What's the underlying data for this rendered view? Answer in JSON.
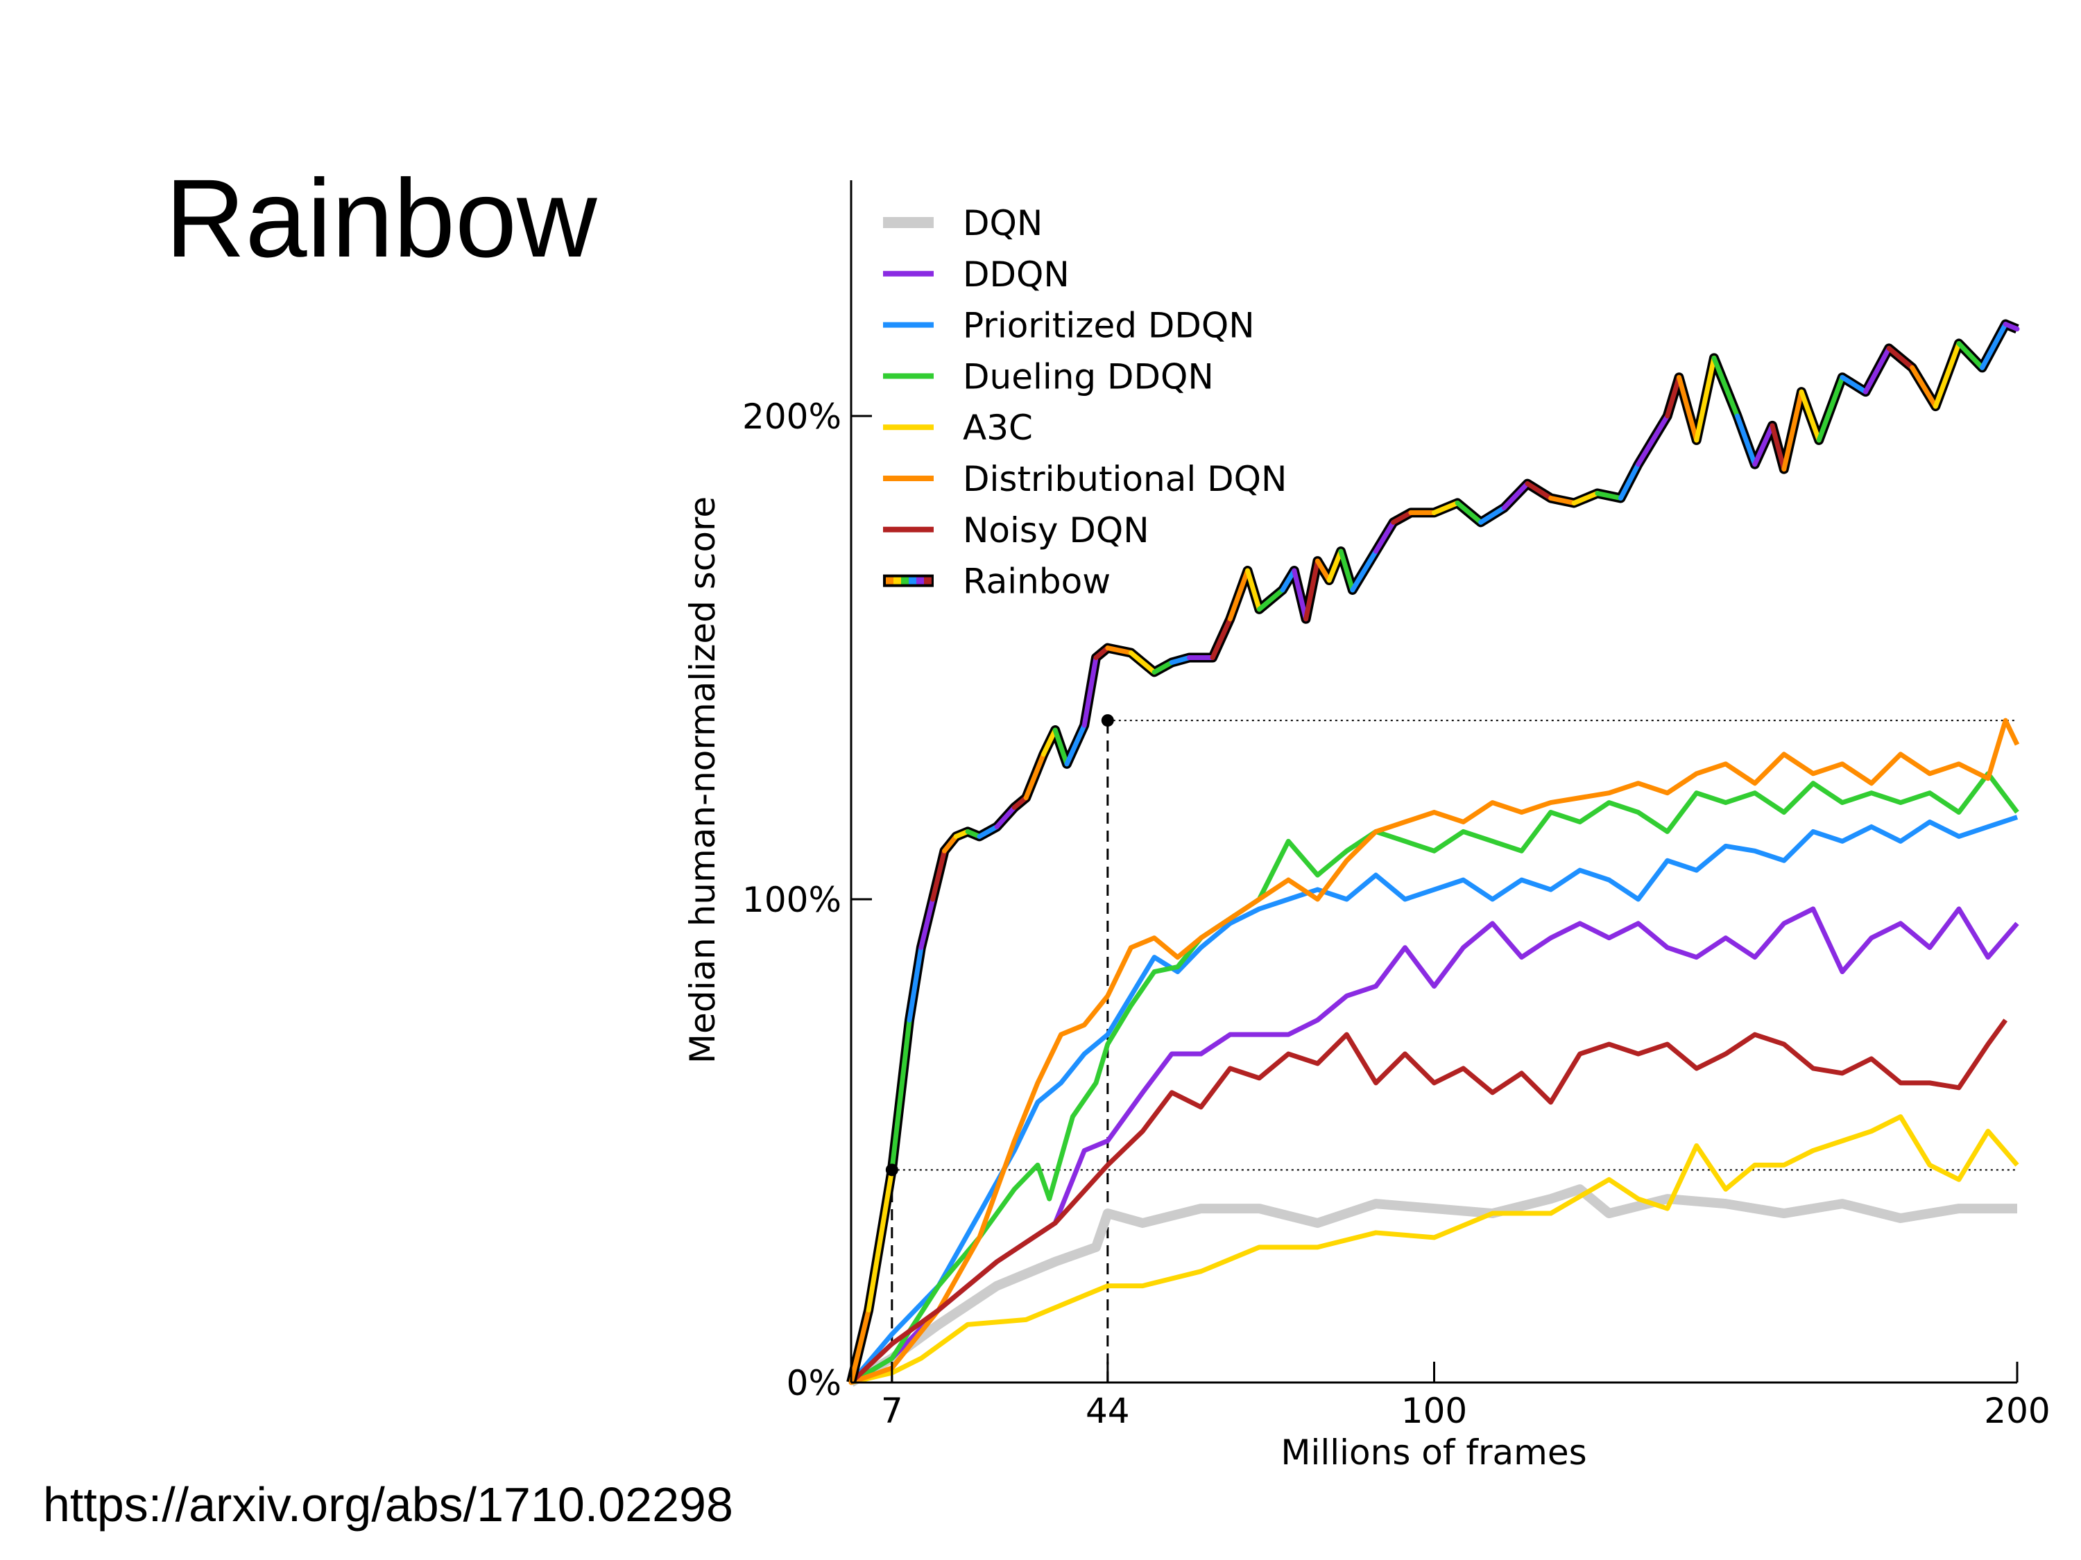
{
  "slide": {
    "title": "Rainbow",
    "source_url": "https://arxiv.org/abs/1710.02298"
  },
  "chart_data": {
    "type": "line",
    "title": "",
    "xlabel": "Millions of frames",
    "ylabel": "Median human-normalized score",
    "xlim": [
      0,
      200
    ],
    "ylim": [
      0,
      230
    ],
    "x_ticks": [
      7,
      44,
      100,
      200
    ],
    "x_tick_labels": [
      "7",
      "44",
      "100",
      "200"
    ],
    "y_ticks": [
      0,
      100,
      200
    ],
    "y_tick_labels": [
      "0%",
      "100%",
      "200%"
    ],
    "grid": false,
    "legend_position": "top-left",
    "reference_lines": [
      {
        "kind": "horizontal",
        "y": 44,
        "from_x": 7,
        "to_x": 200
      },
      {
        "kind": "vertical",
        "x": 7,
        "from_y": 0,
        "to_y": 44
      },
      {
        "kind": "horizontal",
        "y": 137,
        "from_x": 44,
        "to_x": 200
      },
      {
        "kind": "vertical",
        "x": 44,
        "from_y": 0,
        "to_y": 137
      }
    ],
    "markers": [
      {
        "x": 7,
        "y": 44
      },
      {
        "x": 44,
        "y": 137
      }
    ],
    "series": [
      {
        "name": "DQN",
        "color": "#cccccc",
        "x": [
          0,
          7,
          15,
          25,
          35,
          42,
          44,
          50,
          60,
          70,
          80,
          90,
          100,
          110,
          120,
          125,
          130,
          140,
          150,
          160,
          170,
          180,
          190,
          200
        ],
        "y": [
          0,
          5,
          12,
          20,
          25,
          28,
          35,
          33,
          36,
          36,
          33,
          37,
          36,
          35,
          38,
          40,
          35,
          38,
          37,
          35,
          37,
          34,
          36,
          36
        ]
      },
      {
        "name": "DDQN",
        "color": "#8a2be2",
        "x": [
          0,
          7,
          15,
          25,
          35,
          40,
          44,
          50,
          55,
          60,
          65,
          70,
          75,
          80,
          85,
          90,
          95,
          100,
          105,
          110,
          115,
          120,
          125,
          130,
          135,
          140,
          145,
          150,
          155,
          160,
          165,
          170,
          175,
          180,
          185,
          190,
          195,
          200
        ],
        "y": [
          0,
          5,
          15,
          25,
          33,
          48,
          50,
          60,
          68,
          68,
          72,
          72,
          72,
          75,
          80,
          82,
          90,
          82,
          90,
          95,
          88,
          92,
          95,
          92,
          95,
          90,
          88,
          92,
          88,
          95,
          98,
          85,
          92,
          95,
          90,
          98,
          88,
          95
        ]
      },
      {
        "name": "Prioritized DDQN",
        "color": "#1e90ff",
        "x": [
          0,
          7,
          15,
          22,
          28,
          32,
          36,
          40,
          44,
          48,
          52,
          56,
          60,
          65,
          70,
          75,
          80,
          85,
          90,
          95,
          100,
          105,
          110,
          115,
          120,
          125,
          130,
          135,
          140,
          145,
          150,
          155,
          160,
          165,
          170,
          175,
          180,
          185,
          190,
          195,
          200
        ],
        "y": [
          0,
          10,
          20,
          35,
          48,
          58,
          62,
          68,
          72,
          80,
          88,
          85,
          90,
          95,
          98,
          100,
          102,
          100,
          105,
          100,
          102,
          104,
          100,
          104,
          102,
          106,
          104,
          100,
          108,
          106,
          111,
          110,
          108,
          114,
          112,
          115,
          112,
          116,
          113,
          115,
          117
        ]
      },
      {
        "name": "Dueling DDQN",
        "color": "#32cd32",
        "x": [
          0,
          7,
          15,
          22,
          28,
          32,
          34,
          38,
          42,
          44,
          48,
          52,
          56,
          60,
          65,
          70,
          75,
          80,
          85,
          90,
          95,
          100,
          105,
          110,
          115,
          120,
          125,
          130,
          135,
          140,
          145,
          150,
          155,
          160,
          165,
          170,
          175,
          180,
          185,
          190,
          195,
          200
        ],
        "y": [
          0,
          5,
          20,
          30,
          40,
          45,
          38,
          55,
          62,
          70,
          78,
          85,
          86,
          92,
          96,
          100,
          112,
          105,
          110,
          114,
          112,
          110,
          114,
          112,
          110,
          118,
          116,
          120,
          118,
          114,
          122,
          120,
          122,
          118,
          124,
          120,
          122,
          120,
          122,
          118,
          126,
          118
        ]
      },
      {
        "name": "A3C",
        "color": "#ffd700",
        "x": [
          0,
          7,
          12,
          20,
          30,
          40,
          44,
          50,
          60,
          70,
          80,
          90,
          100,
          110,
          120,
          130,
          135,
          140,
          145,
          150,
          155,
          160,
          165,
          170,
          175,
          180,
          185,
          190,
          195,
          200
        ],
        "y": [
          0,
          2,
          5,
          12,
          13,
          18,
          20,
          20,
          23,
          28,
          28,
          31,
          30,
          35,
          35,
          42,
          38,
          36,
          49,
          40,
          45,
          45,
          48,
          50,
          52,
          55,
          45,
          42,
          52,
          45
        ]
      },
      {
        "name": "Distributional DQN",
        "color": "#ff8c00",
        "x": [
          0,
          7,
          15,
          22,
          28,
          32,
          36,
          40,
          44,
          48,
          52,
          56,
          60,
          65,
          70,
          75,
          80,
          85,
          90,
          95,
          100,
          105,
          110,
          115,
          120,
          125,
          130,
          135,
          140,
          145,
          150,
          155,
          160,
          165,
          170,
          175,
          180,
          185,
          190,
          195,
          198,
          200
        ],
        "y": [
          0,
          3,
          15,
          30,
          50,
          62,
          72,
          74,
          80,
          90,
          92,
          88,
          92,
          96,
          100,
          104,
          100,
          108,
          114,
          116,
          118,
          116,
          120,
          118,
          120,
          121,
          122,
          124,
          122,
          126,
          128,
          124,
          130,
          126,
          128,
          124,
          130,
          126,
          128,
          125,
          137,
          132
        ]
      },
      {
        "name": "Noisy DQN",
        "color": "#b22222",
        "x": [
          0,
          7,
          15,
          25,
          35,
          44,
          50,
          55,
          60,
          65,
          70,
          75,
          80,
          85,
          90,
          95,
          100,
          105,
          110,
          115,
          120,
          125,
          130,
          135,
          140,
          145,
          150,
          155,
          160,
          165,
          170,
          175,
          180,
          185,
          190,
          195,
          198
        ],
        "y": [
          0,
          8,
          15,
          25,
          33,
          45,
          52,
          60,
          57,
          65,
          63,
          68,
          66,
          72,
          62,
          68,
          62,
          65,
          60,
          64,
          58,
          68,
          70,
          68,
          70,
          65,
          68,
          72,
          70,
          65,
          64,
          67,
          62,
          62,
          61,
          70,
          75
        ]
      },
      {
        "name": "Rainbow",
        "color": "rainbow",
        "x": [
          0,
          3,
          7,
          10,
          12,
          14,
          16,
          18,
          20,
          22,
          25,
          28,
          30,
          33,
          35,
          37,
          40,
          42,
          44,
          48,
          52,
          55,
          58,
          62,
          65,
          68,
          70,
          74,
          76,
          78,
          80,
          82,
          84,
          86,
          90,
          93,
          96,
          100,
          104,
          108,
          112,
          116,
          120,
          124,
          128,
          132,
          135,
          140,
          142,
          145,
          148,
          152,
          155,
          158,
          160,
          163,
          166,
          170,
          174,
          178,
          182,
          186,
          190,
          194,
          198,
          200
        ],
        "y": [
          0,
          15,
          44,
          75,
          90,
          100,
          110,
          113,
          114,
          113,
          115,
          119,
          121,
          130,
          135,
          128,
          136,
          150,
          152,
          151,
          147,
          149,
          150,
          150,
          158,
          168,
          160,
          164,
          168,
          158,
          170,
          166,
          172,
          164,
          172,
          178,
          180,
          180,
          182,
          178,
          181,
          186,
          183,
          182,
          184,
          183,
          190,
          200,
          208,
          195,
          212,
          200,
          190,
          198,
          189,
          205,
          195,
          208,
          205,
          214,
          210,
          202,
          215,
          210,
          219,
          218
        ]
      }
    ],
    "rainbow_colors": [
      "#ff8c00",
      "#ffd700",
      "#32cd32",
      "#1e90ff",
      "#8a2be2",
      "#b22222"
    ]
  }
}
